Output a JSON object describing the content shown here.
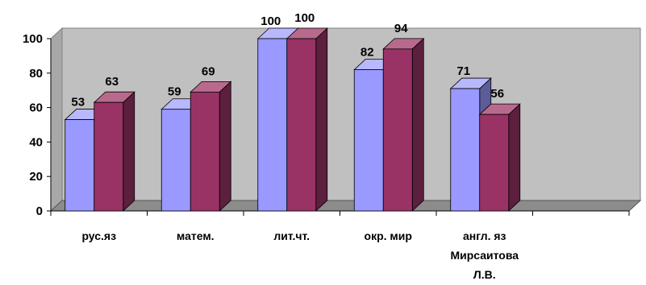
{
  "chart_data": {
    "type": "bar",
    "three_d": true,
    "title": "",
    "xlabel": "",
    "ylabel": "",
    "categories": [
      [
        "рус.яз"
      ],
      [
        "матем."
      ],
      [
        "лит.чт."
      ],
      [
        "окр. мир"
      ],
      [
        "англ. яз",
        "Мирсаитова",
        "Л.В."
      ],
      [
        ""
      ]
    ],
    "series": [
      {
        "values": [
          53,
          59,
          100,
          82,
          71,
          null
        ]
      },
      {
        "values": [
          63,
          69,
          100,
          94,
          56,
          null
        ]
      }
    ],
    "ylim": [
      0,
      100
    ],
    "yticks": [
      0,
      20,
      40,
      60,
      80,
      100
    ],
    "grid": false,
    "legend": "none",
    "colors": {
      "series_front": [
        "#9999ff",
        "#993366"
      ],
      "series_side": [
        "#5c5c99",
        "#5c1f3d"
      ],
      "series_top": [
        "#b8b8ff",
        "#b86a8c"
      ],
      "plot_back": "#c0c0c0",
      "plot_floor": "#8c8c8c",
      "plot_wall": "#a8a8a8",
      "edge": "#000000"
    }
  }
}
